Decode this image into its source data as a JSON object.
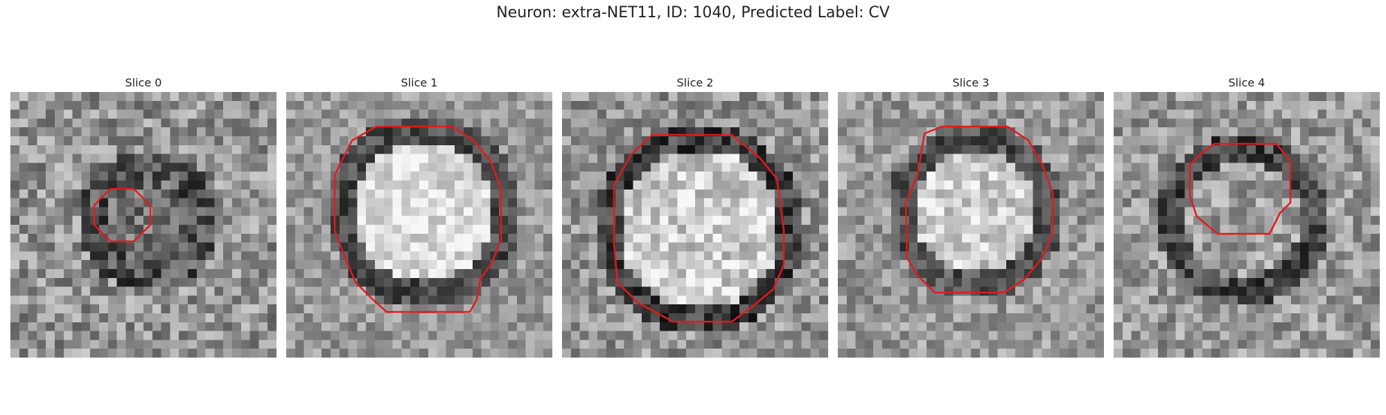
{
  "figure": {
    "title": "Neuron: extra-NET11, ID: 1040, Predicted Label: CV"
  },
  "slices": [
    {
      "title": "Slice 0"
    },
    {
      "title": "Slice 1"
    },
    {
      "title": "Slice 2"
    },
    {
      "title": "Slice 3"
    },
    {
      "title": "Slice 4"
    }
  ],
  "contour_color": "#e31a1c"
}
